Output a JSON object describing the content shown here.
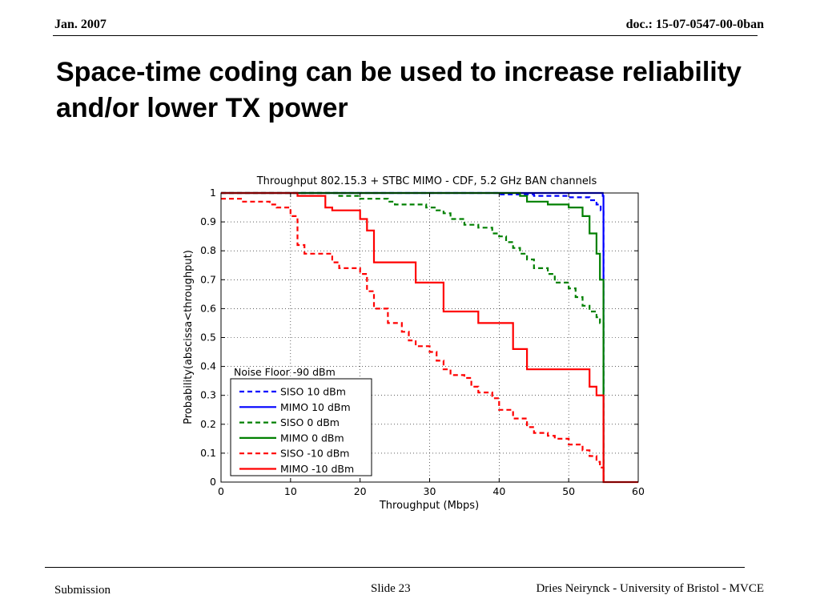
{
  "header": {
    "date": "Jan.  2007",
    "doc": "doc.: 15-07-0547-00-0ban"
  },
  "slide_title": "Space-time coding can be used to increase reliability and/or lower TX power",
  "footer": {
    "left": "Submission",
    "center": "Slide 23",
    "right": "Dries Neirynck - University of Bristol - MVCE"
  },
  "chart_data": {
    "type": "line",
    "title": "Throughput 802.15.3 + STBC MIMO - CDF, 5.2 GHz BAN channels",
    "xlabel": "Throughput (Mbps)",
    "ylabel": "Probability(abscissa<throughput)",
    "xlim": [
      0,
      60
    ],
    "ylim": [
      0,
      1
    ],
    "xticks": [
      0,
      10,
      20,
      30,
      40,
      50,
      60
    ],
    "yticks": [
      0,
      0.1,
      0.2,
      0.3,
      0.4,
      0.5,
      0.6,
      0.7,
      0.8,
      0.9,
      1
    ],
    "grid": true,
    "legend_title": "Noise Floor -90 dBm",
    "legend_position": "lower-left",
    "series": [
      {
        "name": "SISO 10 dBm",
        "color": "#0000ff",
        "dash": true,
        "x": [
          0,
          35,
          40,
          45,
          50,
          53,
          54,
          54.6,
          55,
          55
        ],
        "y": [
          1,
          1,
          0.995,
          0.99,
          0.985,
          0.975,
          0.96,
          0.94,
          0.9,
          0
        ]
      },
      {
        "name": "MIMO 10 dBm",
        "color": "#0000ff",
        "dash": false,
        "x": [
          0,
          54.5,
          54.9,
          55,
          55
        ],
        "y": [
          1,
          1,
          0.99,
          0.97,
          0
        ]
      },
      {
        "name": "SISO 0 dBm",
        "color": "#008000",
        "dash": true,
        "x": [
          0,
          16,
          17,
          19,
          20,
          22,
          24,
          25,
          28,
          29.5,
          31,
          32,
          33,
          35,
          36,
          37,
          39,
          40,
          41,
          42,
          43,
          44,
          45,
          47,
          48,
          50,
          51,
          52,
          53,
          54,
          54.5,
          55,
          55
        ],
        "y": [
          1,
          1,
          0.99,
          0.99,
          0.98,
          0.98,
          0.97,
          0.96,
          0.96,
          0.95,
          0.94,
          0.93,
          0.91,
          0.89,
          0.89,
          0.88,
          0.86,
          0.85,
          0.83,
          0.81,
          0.79,
          0.77,
          0.74,
          0.72,
          0.69,
          0.67,
          0.64,
          0.61,
          0.59,
          0.57,
          0.55,
          0.5,
          0
        ]
      },
      {
        "name": "MIMO 0 dBm",
        "color": "#008000",
        "dash": false,
        "x": [
          0,
          40,
          43,
          44,
          47,
          50,
          52,
          53,
          54,
          54.5,
          55,
          55
        ],
        "y": [
          1,
          1,
          0.99,
          0.97,
          0.96,
          0.95,
          0.92,
          0.86,
          0.79,
          0.7,
          0.55,
          0
        ]
      },
      {
        "name": "SISO -10 dBm",
        "color": "#ff0000",
        "dash": true,
        "x": [
          0,
          1,
          3,
          7,
          8,
          10,
          11,
          12,
          15,
          16,
          17,
          20,
          21,
          22,
          24,
          26,
          27,
          28,
          30,
          31,
          32,
          33,
          35,
          36,
          37,
          39,
          40,
          42,
          44,
          45,
          47,
          48,
          50,
          52,
          53,
          54,
          54.5,
          55,
          55
        ],
        "y": [
          0.98,
          0.98,
          0.97,
          0.96,
          0.95,
          0.92,
          0.82,
          0.79,
          0.79,
          0.76,
          0.74,
          0.72,
          0.66,
          0.6,
          0.55,
          0.52,
          0.49,
          0.47,
          0.45,
          0.42,
          0.39,
          0.37,
          0.36,
          0.33,
          0.31,
          0.29,
          0.25,
          0.22,
          0.19,
          0.17,
          0.16,
          0.15,
          0.13,
          0.11,
          0.09,
          0.07,
          0.05,
          0.03,
          0
        ]
      },
      {
        "name": "MIMO -10 dBm",
        "color": "#ff0000",
        "dash": false,
        "x": [
          0,
          10,
          11,
          15,
          16,
          20,
          21,
          22,
          25,
          28,
          30,
          32,
          34,
          37,
          40,
          42,
          44,
          50,
          53,
          54,
          55,
          55,
          60
        ],
        "y": [
          1,
          1,
          0.99,
          0.95,
          0.94,
          0.91,
          0.87,
          0.76,
          0.76,
          0.69,
          0.69,
          0.59,
          0.59,
          0.55,
          0.55,
          0.46,
          0.39,
          0.39,
          0.33,
          0.3,
          0.2,
          0,
          0
        ]
      }
    ]
  }
}
